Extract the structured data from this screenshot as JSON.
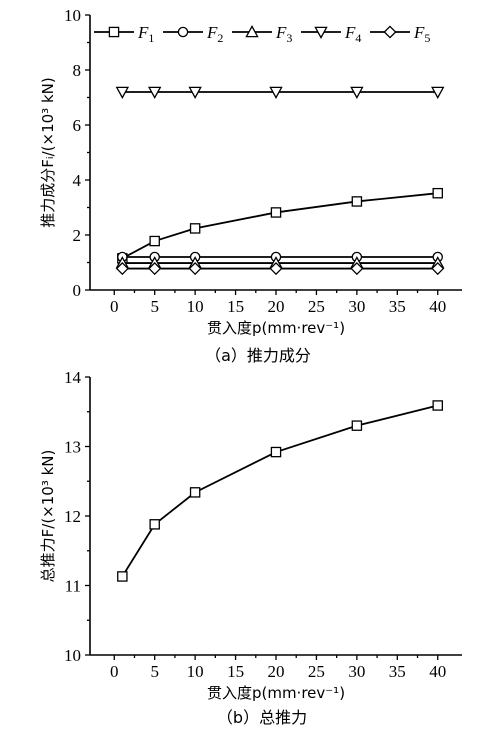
{
  "chart_data": [
    {
      "type": "line",
      "caption": "（a）推力成分",
      "xlabel": "贯入度p(mm·rev⁻¹)",
      "ylabel": "推力成分Fᵢ/(×10³ kN)",
      "xlim": [
        -3,
        43
      ],
      "ylim": [
        0,
        10
      ],
      "xticks": [
        0,
        5,
        10,
        15,
        20,
        25,
        30,
        35,
        40
      ],
      "yticks": [
        0,
        2,
        4,
        6,
        8,
        10
      ],
      "legend": "top",
      "x": [
        1,
        5,
        10,
        20,
        30,
        40
      ],
      "series": [
        {
          "name": "F",
          "sub": "1",
          "marker": "square",
          "values": [
            1.15,
            1.78,
            2.24,
            2.82,
            3.22,
            3.52
          ]
        },
        {
          "name": "F",
          "sub": "2",
          "marker": "circle",
          "values": [
            1.2,
            1.2,
            1.2,
            1.2,
            1.2,
            1.2
          ]
        },
        {
          "name": "F",
          "sub": "3",
          "marker": "triangle-up",
          "values": [
            0.98,
            0.98,
            0.98,
            0.98,
            0.98,
            0.98
          ]
        },
        {
          "name": "F",
          "sub": "4",
          "marker": "triangle-down",
          "values": [
            7.2,
            7.2,
            7.2,
            7.2,
            7.2,
            7.2
          ]
        },
        {
          "name": "F",
          "sub": "5",
          "marker": "diamond",
          "values": [
            0.78,
            0.78,
            0.78,
            0.78,
            0.78,
            0.78
          ]
        }
      ]
    },
    {
      "type": "line",
      "caption": "（b）总推力",
      "xlabel": "贯入度p(mm·rev⁻¹)",
      "ylabel": "总推力F/(×10³ kN)",
      "xlim": [
        -3,
        43
      ],
      "ylim": [
        10,
        14
      ],
      "xticks": [
        0,
        5,
        10,
        15,
        20,
        25,
        30,
        35,
        40
      ],
      "yticks": [
        10,
        11,
        12,
        13,
        14
      ],
      "x": [
        1,
        5,
        10,
        20,
        30,
        40
      ],
      "series": [
        {
          "name": "",
          "marker": "square",
          "values": [
            11.13,
            11.88,
            12.34,
            12.92,
            13.3,
            13.59
          ]
        }
      ]
    }
  ]
}
